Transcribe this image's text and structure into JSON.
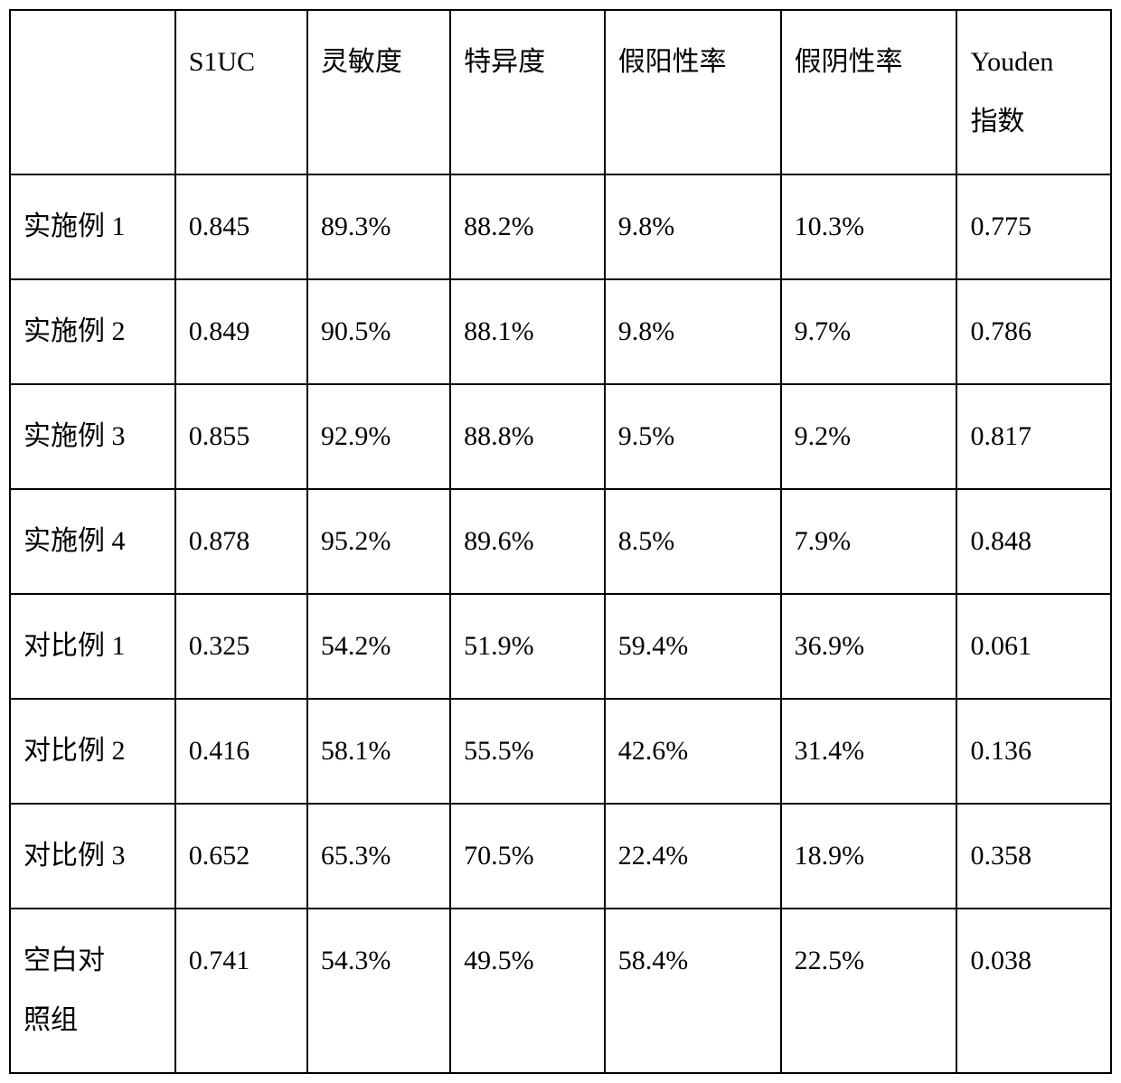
{
  "table": {
    "headers": [
      "",
      "S1UC",
      "灵敏度",
      "特异度",
      "假阳性率",
      "假阴性率",
      "Youden\n指数"
    ],
    "rows": [
      [
        "实施例 1",
        "0.845",
        "89.3%",
        "88.2%",
        "9.8%",
        "10.3%",
        "0.775"
      ],
      [
        "实施例 2",
        "0.849",
        "90.5%",
        "88.1%",
        "9.8%",
        "9.7%",
        "0.786"
      ],
      [
        "实施例 3",
        "0.855",
        "92.9%",
        "88.8%",
        "9.5%",
        "9.2%",
        "0.817"
      ],
      [
        "实施例 4",
        "0.878",
        "95.2%",
        "89.6%",
        "8.5%",
        "7.9%",
        "0.848"
      ],
      [
        "对比例 1",
        "0.325",
        "54.2%",
        "51.9%",
        "59.4%",
        "36.9%",
        "0.061"
      ],
      [
        "对比例 2",
        "0.416",
        "58.1%",
        "55.5%",
        "42.6%",
        "31.4%",
        "0.136"
      ],
      [
        "对比例 3",
        "0.652",
        "65.3%",
        "70.5%",
        "22.4%",
        "18.9%",
        "0.358"
      ],
      [
        "空白对\n照组",
        "0.741",
        "54.3%",
        "49.5%",
        "58.4%",
        "22.5%",
        "0.038"
      ]
    ],
    "column_widths": [
      "15%",
      "12%",
      "13%",
      "14%",
      "16%",
      "16%",
      "14%"
    ],
    "border_color": "#000000",
    "background_color": "#ffffff",
    "font_family": "SimSun",
    "cell_fontsize": 30,
    "cell_padding": "24px 14px",
    "text_align": "left",
    "line_height": 2.2
  }
}
